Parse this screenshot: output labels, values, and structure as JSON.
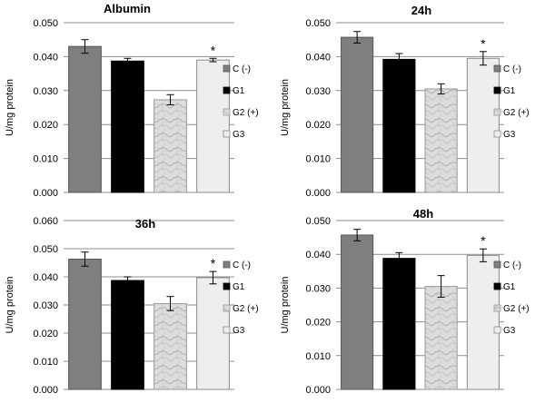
{
  "colors": {
    "c_neg": "#7f7f7f",
    "g1": "#000000",
    "g2_pos": "#d6d6d6",
    "g3": "#eeeeee",
    "grid": "#8c8c8c",
    "errorbar": "#000000"
  },
  "legend": {
    "position": "right",
    "entries": [
      "C (-)",
      "G1",
      "G2 (+)",
      "G3"
    ],
    "icons": [
      "c-neg-swatch",
      "g1-swatch",
      "g2-pos-swatch",
      "g3-swatch"
    ]
  },
  "chart_data": [
    {
      "type": "bar",
      "title": "Albumin",
      "ylabel": "U/mg protein",
      "ylim": [
        0,
        0.05
      ],
      "grid": true,
      "yticks": [
        "0.000",
        "0.010",
        "0.020",
        "0.030",
        "0.040",
        "0.050"
      ],
      "series": [
        {
          "name": "C (-)",
          "value": 0.043,
          "error": 0.002
        },
        {
          "name": "G1",
          "value": 0.0387,
          "error": 0.0008
        },
        {
          "name": "G2 (+)",
          "value": 0.0273,
          "error": 0.0015
        },
        {
          "name": "G3",
          "value": 0.039,
          "error": 0.0005,
          "annotation": "*"
        }
      ]
    },
    {
      "type": "bar",
      "title": "24h",
      "ylabel": "U/mg protein",
      "ylim": [
        0,
        0.05
      ],
      "grid": true,
      "yticks": [
        "0.000",
        "0.010",
        "0.020",
        "0.030",
        "0.040",
        "0.050"
      ],
      "series": [
        {
          "name": "C (-)",
          "value": 0.0457,
          "error": 0.0017
        },
        {
          "name": "G1",
          "value": 0.0392,
          "error": 0.0017
        },
        {
          "name": "G2 (+)",
          "value": 0.0305,
          "error": 0.0015
        },
        {
          "name": "G3",
          "value": 0.0395,
          "error": 0.002,
          "annotation": "*"
        }
      ]
    },
    {
      "type": "bar",
      "title": "36h",
      "ylabel": "U/mg protein",
      "ylim": [
        0,
        0.06
      ],
      "grid": true,
      "yticks": [
        "0.000",
        "0.010",
        "0.020",
        "0.030",
        "0.040",
        "0.050",
        "0.060"
      ],
      "series": [
        {
          "name": "C (-)",
          "value": 0.0463,
          "error": 0.0025
        },
        {
          "name": "G1",
          "value": 0.0387,
          "error": 0.0013
        },
        {
          "name": "G2 (+)",
          "value": 0.0305,
          "error": 0.0025
        },
        {
          "name": "G3",
          "value": 0.0397,
          "error": 0.0022,
          "annotation": "*"
        }
      ]
    },
    {
      "type": "bar",
      "title": "48h",
      "ylabel": "U/mg protein",
      "ylim": [
        0,
        0.05
      ],
      "grid": true,
      "yticks": [
        "0.000",
        "0.010",
        "0.020",
        "0.030",
        "0.040",
        "0.050"
      ],
      "series": [
        {
          "name": "C (-)",
          "value": 0.0457,
          "error": 0.0017
        },
        {
          "name": "G1",
          "value": 0.0388,
          "error": 0.0017
        },
        {
          "name": "G2 (+)",
          "value": 0.0305,
          "error": 0.0032
        },
        {
          "name": "G3",
          "value": 0.0397,
          "error": 0.0019,
          "annotation": "*"
        }
      ]
    }
  ]
}
